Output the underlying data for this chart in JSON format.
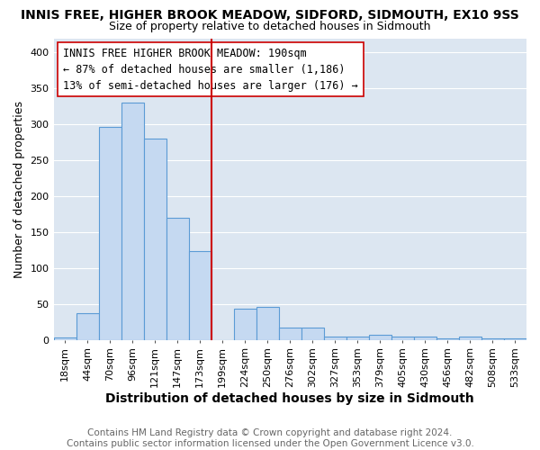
{
  "title": "INNIS FREE, HIGHER BROOK MEADOW, SIDFORD, SIDMOUTH, EX10 9SS",
  "subtitle": "Size of property relative to detached houses in Sidmouth",
  "xlabel": "Distribution of detached houses by size in Sidmouth",
  "ylabel": "Number of detached properties",
  "categories": [
    "18sqm",
    "44sqm",
    "70sqm",
    "96sqm",
    "121sqm",
    "147sqm",
    "173sqm",
    "199sqm",
    "224sqm",
    "250sqm",
    "276sqm",
    "302sqm",
    "327sqm",
    "353sqm",
    "379sqm",
    "405sqm",
    "430sqm",
    "456sqm",
    "482sqm",
    "508sqm",
    "533sqm"
  ],
  "values": [
    3,
    37,
    297,
    330,
    280,
    170,
    124,
    0,
    43,
    46,
    17,
    17,
    5,
    5,
    7,
    5,
    5,
    2,
    5,
    2,
    2
  ],
  "bar_color": "#c5d9f1",
  "bar_edge_color": "#5b9bd5",
  "vline_color": "#cc0000",
  "vline_x_index": 7.0,
  "annotation_lines": [
    "INNIS FREE HIGHER BROOK MEADOW: 190sqm",
    "← 87% of detached houses are smaller (1,186)",
    "13% of semi-detached houses are larger (176) →"
  ],
  "annotation_box_color": "#ffffff",
  "annotation_box_edge": "#cc0000",
  "ylim": [
    0,
    420
  ],
  "yticks": [
    0,
    50,
    100,
    150,
    200,
    250,
    300,
    350,
    400
  ],
  "fig_bg_color": "#ffffff",
  "plot_bg_color": "#dce6f1",
  "grid_color": "#ffffff",
  "title_fontsize": 10,
  "subtitle_fontsize": 9,
  "xlabel_fontsize": 10,
  "ylabel_fontsize": 9,
  "tick_fontsize": 8,
  "annotation_fontsize": 8.5,
  "footer_fontsize": 7.5,
  "footer_line1": "Contains HM Land Registry data © Crown copyright and database right 2024.",
  "footer_line2": "Contains public sector information licensed under the Open Government Licence v3.0."
}
